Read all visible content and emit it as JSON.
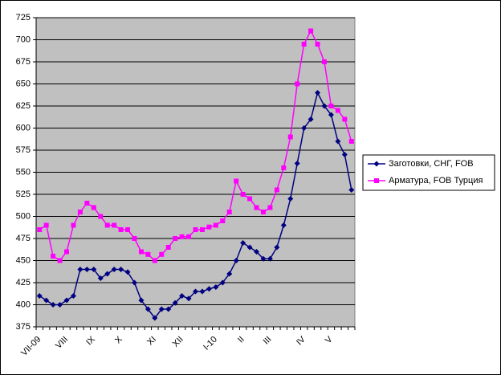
{
  "chart_data": {
    "type": "line",
    "categories": [
      "VII-09",
      null,
      null,
      null,
      "VIII",
      null,
      null,
      null,
      "IX",
      null,
      null,
      null,
      "X",
      null,
      null,
      null,
      null,
      "XI",
      null,
      null,
      null,
      "XII",
      null,
      null,
      null,
      null,
      "I-10",
      null,
      null,
      null,
      "II",
      null,
      null,
      null,
      "III",
      null,
      null,
      null,
      null,
      "IV",
      null,
      null,
      null,
      "V",
      null,
      null,
      null
    ],
    "series": [
      {
        "name": "Заготовки, СНГ, FOB",
        "color": "#000080",
        "marker": "diamond",
        "values": [
          410,
          405,
          400,
          400,
          405,
          410,
          440,
          440,
          440,
          430,
          435,
          440,
          440,
          437,
          425,
          405,
          395,
          385,
          395,
          395,
          402,
          410,
          407,
          415,
          415,
          418,
          420,
          425,
          435,
          450,
          470,
          465,
          460,
          452,
          452,
          465,
          490,
          520,
          560,
          600,
          610,
          640,
          625,
          615,
          585,
          570,
          530
        ]
      },
      {
        "name": "Арматура, FOB Турция",
        "color": "#ff00ff",
        "marker": "square",
        "values": [
          485,
          490,
          455,
          450,
          460,
          490,
          505,
          515,
          510,
          500,
          490,
          490,
          485,
          485,
          475,
          460,
          457,
          450,
          457,
          465,
          475,
          477,
          477,
          485,
          485,
          488,
          490,
          495,
          505,
          540,
          525,
          520,
          510,
          505,
          510,
          530,
          555,
          590,
          650,
          695,
          710,
          695,
          675,
          625,
          620,
          610,
          585
        ]
      }
    ],
    "ylim": [
      375,
      725
    ],
    "yticks": [
      375,
      400,
      425,
      450,
      475,
      500,
      525,
      550,
      575,
      600,
      625,
      650,
      675,
      700,
      725
    ],
    "grid": true
  }
}
